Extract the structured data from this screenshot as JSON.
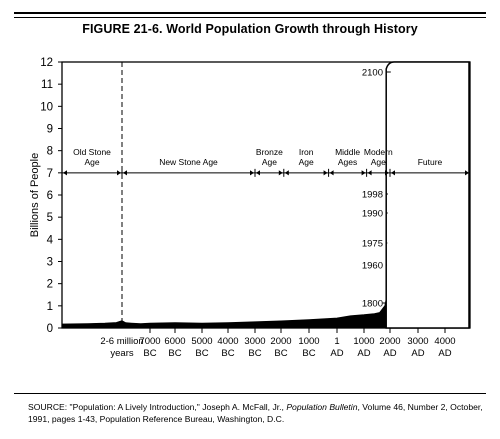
{
  "figure": {
    "title": "FIGURE 21-6. World Population Growth through History",
    "source": {
      "prefix": "SOURCE: \"Population: A Lively Introduction,\" Joseph A. McFall, Jr., ",
      "publication": "Population Bulletin",
      "suffix": ", Volume 46, Number 2, October, 1991, pages 1-43, Population Reference Bureau, Washington, D.C."
    }
  },
  "chart_data": {
    "type": "area",
    "title": "FIGURE 21-6. World Population Growth through History",
    "ylabel": "Billions of People",
    "xlabel": "",
    "ylim": [
      0,
      12
    ],
    "yticks": [
      0,
      1,
      2,
      3,
      4,
      5,
      6,
      7,
      8,
      9,
      10,
      11,
      12
    ],
    "x_tick_labels": [
      [
        "2-6 million",
        "years"
      ],
      [
        "7000",
        "BC"
      ],
      [
        "6000",
        "BC"
      ],
      [
        "5000",
        "BC"
      ],
      [
        "4000",
        "BC"
      ],
      [
        "3000",
        "BC"
      ],
      [
        "2000",
        "BC"
      ],
      [
        "1000",
        "BC"
      ],
      [
        "1",
        "AD"
      ],
      [
        "1000",
        "AD"
      ],
      [
        "2000",
        "AD"
      ],
      [
        "3000",
        "AD"
      ],
      [
        "4000",
        "AD"
      ]
    ],
    "x_tick_years": [
      -10000,
      -7000,
      -6000,
      -5000,
      -4000,
      -3000,
      -2000,
      -1000,
      1,
      1000,
      2000,
      3000,
      4000
    ],
    "series": [
      {
        "points": [
          [
            -14200,
            0.18
          ],
          [
            -12400,
            0.2
          ],
          [
            -11200,
            0.22
          ],
          [
            -10400,
            0.25
          ],
          [
            -10000,
            0.33
          ],
          [
            -9600,
            0.24
          ],
          [
            -9000,
            0.22
          ],
          [
            -8000,
            0.2
          ],
          [
            -7000,
            0.22
          ],
          [
            -6000,
            0.24
          ],
          [
            -5000,
            0.22
          ],
          [
            -4000,
            0.24
          ],
          [
            -3000,
            0.28
          ],
          [
            -2000,
            0.32
          ],
          [
            -1000,
            0.38
          ],
          [
            1,
            0.45
          ],
          [
            500,
            0.55
          ],
          [
            1000,
            0.6
          ],
          [
            1400,
            0.65
          ],
          [
            1600,
            0.7
          ],
          [
            1800,
            1.0
          ],
          [
            1900,
            1.6
          ],
          [
            1950,
            2.5
          ],
          [
            1960,
            3.0
          ],
          [
            1975,
            4.0
          ],
          [
            1990,
            5.3
          ],
          [
            1998,
            6.0
          ],
          [
            2050,
            9.5
          ],
          [
            2100,
            11.6
          ],
          [
            2150,
            12.0
          ],
          [
            4250,
            12.0
          ]
        ]
      }
    ],
    "annotations": [
      {
        "year": 1800,
        "value": 1.0,
        "label": "1800"
      },
      {
        "year": 1960,
        "value": 3.0,
        "label": "1960"
      },
      {
        "year": 1975,
        "value": 4.0,
        "label": "1975"
      },
      {
        "year": 1990,
        "value": 5.3,
        "label": "1990"
      },
      {
        "year": 1998,
        "value": 6.0,
        "label": "1998"
      },
      {
        "year": 2100,
        "value": 11.6,
        "label": "2100"
      }
    ],
    "eras": [
      {
        "label": [
          "Old Stone",
          "Age"
        ],
        "from": -14200,
        "to": -10000
      },
      {
        "label": [
          "New Stone Age"
        ],
        "from": -10000,
        "to": -3000
      },
      {
        "label": [
          "Bronze",
          "Age"
        ],
        "from": -3000,
        "to": -1900
      },
      {
        "label": [
          "Iron",
          "Age"
        ],
        "from": -1900,
        "to": -300
      },
      {
        "label": [
          "Middle",
          "Ages"
        ],
        "from": -300,
        "to": 1100
      },
      {
        "label": [
          "Modern",
          "Age"
        ],
        "from": 1100,
        "to": 2000
      },
      {
        "label": [
          "Future"
        ],
        "from": 2000,
        "to": 4250
      }
    ],
    "era_line_value": 7,
    "boundary_year": -10000
  }
}
